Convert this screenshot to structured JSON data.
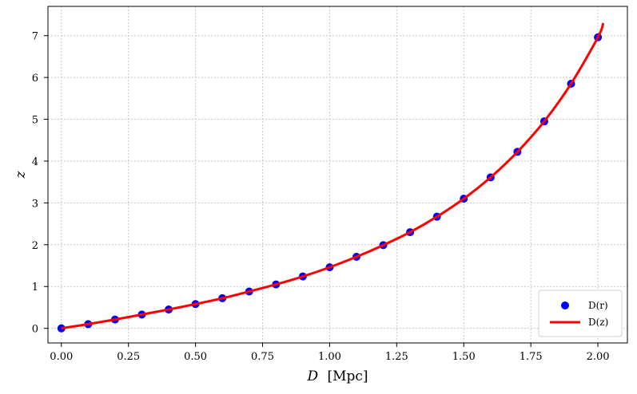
{
  "chart_data": {
    "type": "scatter",
    "xlabel_italic": "D",
    "xlabel_unit": "[Mpc]",
    "ylabel": "z",
    "xlim": [
      -0.05,
      2.11
    ],
    "ylim": [
      -0.35,
      7.7
    ],
    "xticks": [
      "0.00",
      "0.25",
      "0.50",
      "0.75",
      "1.00",
      "1.25",
      "1.50",
      "1.75",
      "2.00"
    ],
    "yticks": [
      "0",
      "1",
      "2",
      "3",
      "4",
      "5",
      "6",
      "7"
    ],
    "grid": true,
    "legend_position": "bottom-right",
    "series": [
      {
        "name": "D(r)",
        "kind": "scatter",
        "color": "#0000ff",
        "x": [
          0.0,
          0.1,
          0.2,
          0.3,
          0.4,
          0.5,
          0.6,
          0.7,
          0.8,
          0.9,
          1.0,
          1.1,
          1.2,
          1.3,
          1.4,
          1.5,
          1.6,
          1.7,
          1.8,
          1.9,
          2.0
        ],
        "y": [
          0.0,
          0.1,
          0.21,
          0.33,
          0.45,
          0.58,
          0.72,
          0.88,
          1.05,
          1.24,
          1.46,
          1.71,
          1.99,
          2.3,
          2.67,
          3.1,
          3.61,
          4.22,
          4.95,
          5.85,
          6.96
        ]
      },
      {
        "name": "D(z)",
        "kind": "line",
        "color": "#ff0000",
        "x": [
          0.0,
          0.1,
          0.2,
          0.3,
          0.4,
          0.5,
          0.6,
          0.7,
          0.8,
          0.9,
          1.0,
          1.1,
          1.2,
          1.3,
          1.4,
          1.5,
          1.6,
          1.7,
          1.8,
          1.9,
          2.0,
          2.02
        ],
        "y": [
          0.0,
          0.1,
          0.21,
          0.33,
          0.45,
          0.58,
          0.72,
          0.88,
          1.05,
          1.24,
          1.46,
          1.71,
          1.99,
          2.3,
          2.67,
          3.1,
          3.61,
          4.22,
          4.95,
          5.85,
          6.96,
          7.3
        ]
      }
    ]
  }
}
